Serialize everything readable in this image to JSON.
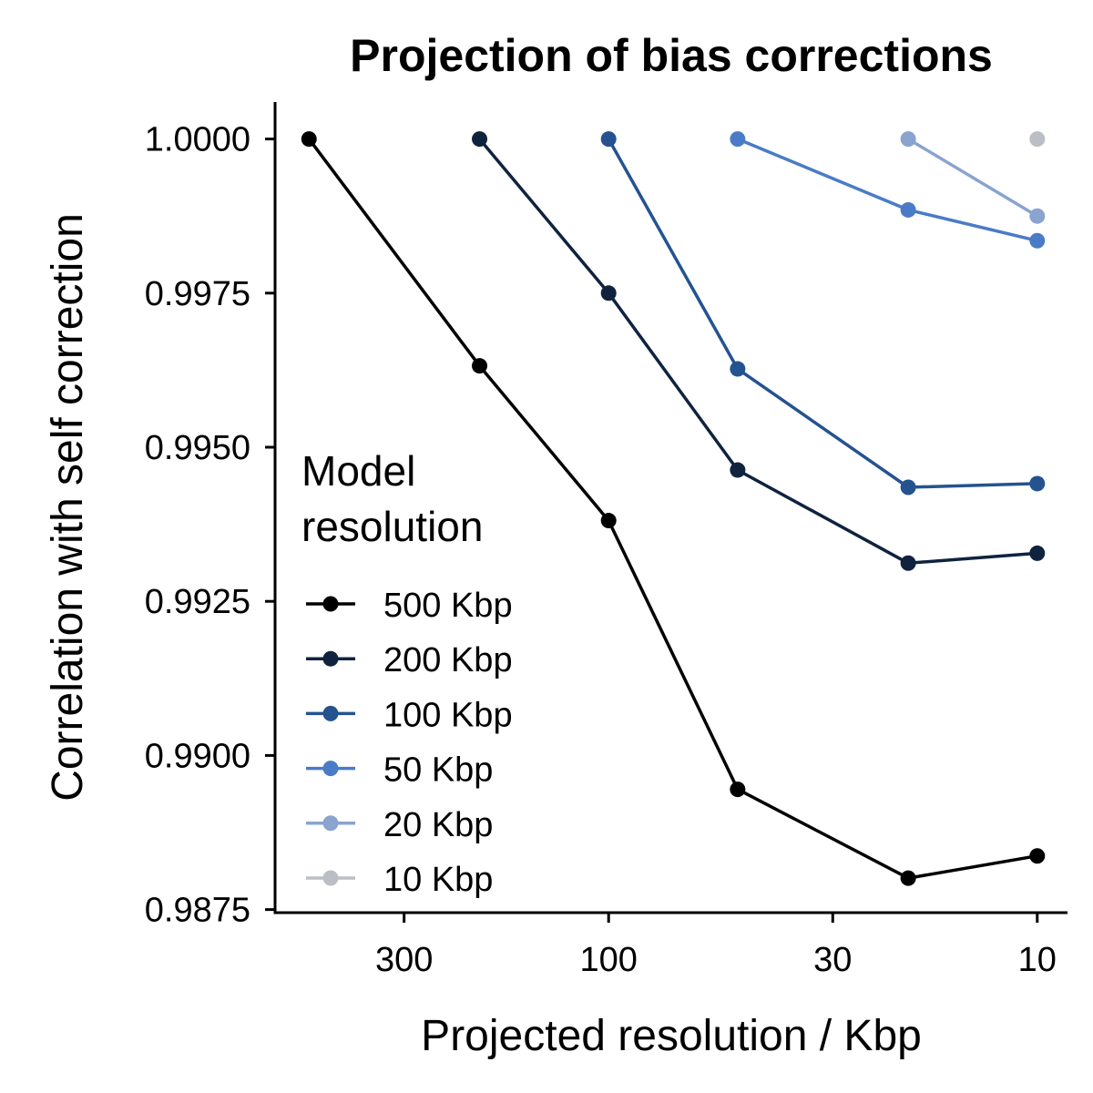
{
  "chart_data": {
    "type": "line",
    "title": "Projection of bias corrections",
    "xlabel": "Projected resolution / Kbp",
    "ylabel": "Correlation with self correction",
    "x_scale": "log-reversed",
    "xlim": [
      600,
      8.5
    ],
    "ylim": [
      0.98745,
      1.0006
    ],
    "x_ticks": [
      300,
      100,
      30,
      10
    ],
    "x_tick_labels": [
      "300",
      "100",
      "30",
      "10"
    ],
    "y_ticks": [
      0.9875,
      0.99,
      0.9925,
      0.995,
      0.9975,
      1.0
    ],
    "y_tick_labels": [
      "0.9875",
      "0.9900",
      "0.9925",
      "0.9950",
      "0.9975",
      "1.0000"
    ],
    "grid": false,
    "legend": {
      "title_lines": [
        "Model",
        "resolution"
      ],
      "placement": "bottom-left inside"
    },
    "series": [
      {
        "name": "500 Kbp",
        "color": "#000000",
        "x": [
          500,
          200,
          100,
          50,
          20,
          10
        ],
        "y": [
          1.0,
          0.99632,
          0.99381,
          0.98945,
          0.98801,
          0.98837
        ]
      },
      {
        "name": "200 Kbp",
        "color": "#0f233f",
        "x": [
          200,
          100,
          50,
          20,
          10
        ],
        "y": [
          1.0,
          0.9975,
          0.99463,
          0.99312,
          0.99328
        ]
      },
      {
        "name": "100 Kbp",
        "color": "#245390",
        "x": [
          100,
          50,
          20,
          10
        ],
        "y": [
          1.0,
          0.99627,
          0.99435,
          0.99441
        ]
      },
      {
        "name": "50 Kbp",
        "color": "#4a7bc6",
        "x": [
          50,
          20,
          10
        ],
        "y": [
          1.0,
          0.99885,
          0.99835
        ]
      },
      {
        "name": "20 Kbp",
        "color": "#8aa3cf",
        "x": [
          20,
          10
        ],
        "y": [
          1.0,
          0.99875
        ]
      },
      {
        "name": "10 Kbp",
        "color": "#bcbec6",
        "x": [
          10
        ],
        "y": [
          1.0
        ]
      }
    ]
  }
}
